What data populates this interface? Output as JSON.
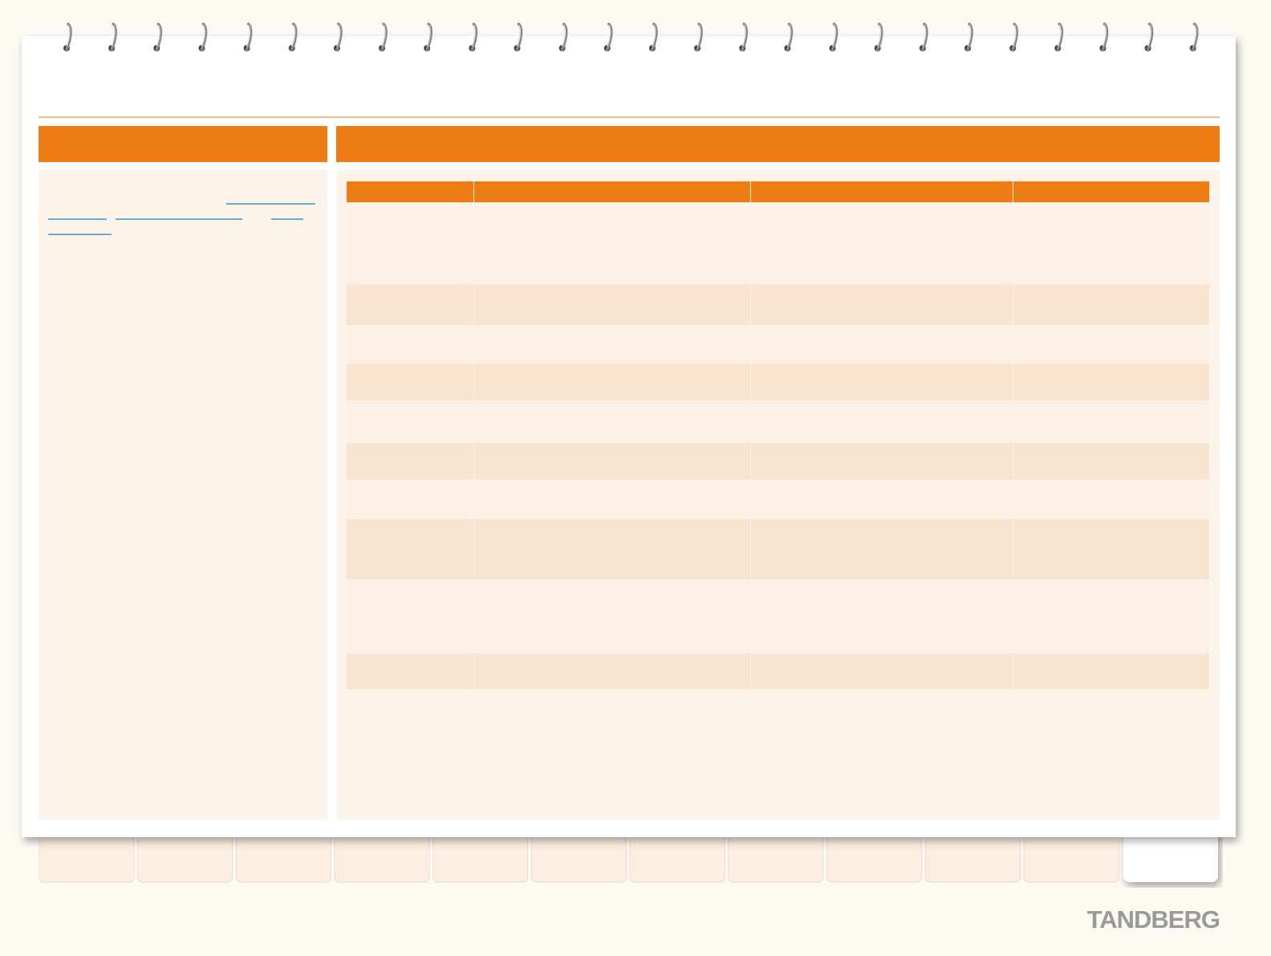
{
  "footer": {
    "logo": "TANDBERG"
  }
}
